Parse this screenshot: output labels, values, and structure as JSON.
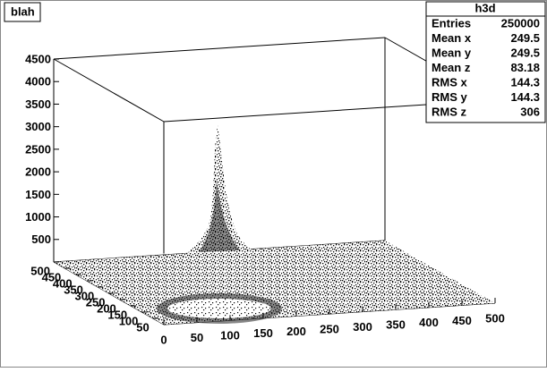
{
  "chart_data": {
    "type": "scatter3d",
    "title": "blah",
    "xlim": [
      0,
      500
    ],
    "ylim": [
      0,
      500
    ],
    "zlim": [
      0,
      4500
    ],
    "xticks": [
      0,
      50,
      100,
      150,
      200,
      250,
      300,
      350,
      400,
      450,
      500
    ],
    "yticks": [
      50,
      100,
      150,
      200,
      250,
      300,
      350,
      400,
      450,
      500
    ],
    "zticks": [
      500,
      1000,
      1500,
      2000,
      2500,
      3000,
      3500,
      4000,
      4500
    ],
    "stats": {
      "name": "h3d",
      "rows": [
        {
          "label": "Entries",
          "value": 250000
        },
        {
          "label": "Mean x",
          "value": 249.5
        },
        {
          "label": "Mean y",
          "value": 249.5
        },
        {
          "label": "Mean z",
          "value": 83.18
        },
        {
          "label": "RMS x",
          "value": 144.3
        },
        {
          "label": "RMS y",
          "value": 144.3
        },
        {
          "label": "RMS z",
          "value": 306
        }
      ]
    }
  }
}
